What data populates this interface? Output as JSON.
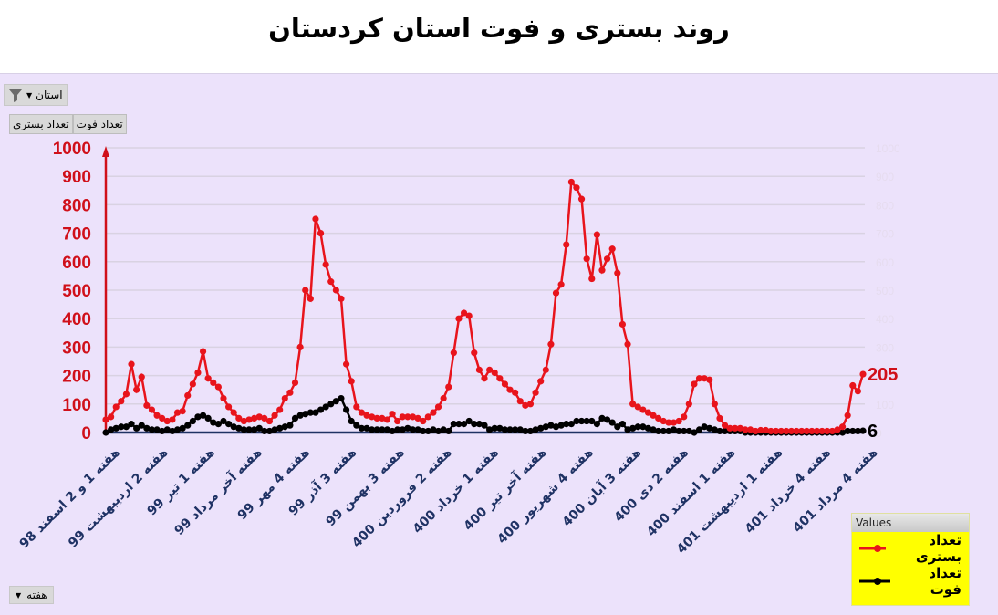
{
  "title": "روند بستری و فوت استان کردستان",
  "controls": {
    "province_filter_label": "استان",
    "series_buttons": [
      "تعداد فوت",
      "تعداد بستری"
    ],
    "week_filter_label": "هفته"
  },
  "legend": {
    "header": "Values",
    "items": [
      {
        "label": "تعداد بستری",
        "color": "#e8141c"
      },
      {
        "label": "تعداد فوت",
        "color": "#000000"
      }
    ]
  },
  "colors": {
    "background_panel": "#ece2fb",
    "hospitalized": "#e8141c",
    "deaths": "#000000",
    "x_label": "#1f3264",
    "left_axis": "#d0101a",
    "right_axis": "#e6dcef"
  },
  "chart_data": {
    "type": "line",
    "title": "روند بستری و فوت استان کردستان",
    "xlabel": "",
    "ylabel": "",
    "ylim": [
      0,
      1000
    ],
    "yticks": [
      0,
      100,
      200,
      300,
      400,
      500,
      600,
      700,
      800,
      900,
      1000
    ],
    "right_yticks": [
      0,
      100,
      200,
      300,
      400,
      500,
      600,
      700,
      800,
      900,
      1000
    ],
    "grid": true,
    "legend_position": "bottom-right",
    "categories": [
      "هفته 1 و 2 اسفند 98",
      "هفته 2 اردیبهشت 99",
      "هفته 1 تیر 99",
      "هفته آخر مرداد 99",
      "هفته 4 مهر 99",
      "هفته 3 آذر 99",
      "هفته 3 بهمن 99",
      "هفته 2 فروردین 400",
      "هفته 1 خرداد 400",
      "هفته آخر تیر 400",
      "هفته 4 شهریور 400",
      "هفته 3 آبان 400",
      "هفته 2 دی 400",
      "هفته 1 اسفند 400",
      "هفته 1 اردیبهشت 401",
      "هفته 4 خرداد 401",
      "هفته 4 مرداد 401"
    ],
    "series": [
      {
        "name": "تعداد بستری",
        "last_value_label": "205",
        "values": [
          45,
          55,
          90,
          110,
          135,
          240,
          150,
          195,
          95,
          80,
          60,
          50,
          40,
          45,
          70,
          75,
          130,
          170,
          210,
          285,
          190,
          175,
          160,
          120,
          90,
          70,
          50,
          40,
          45,
          50,
          55,
          50,
          40,
          60,
          80,
          120,
          140,
          175,
          300,
          500,
          470,
          750,
          700,
          590,
          530,
          500,
          470,
          240,
          180,
          90,
          70,
          60,
          55,
          50,
          50,
          45,
          65,
          40,
          55,
          55,
          55,
          50,
          40,
          55,
          70,
          90,
          120,
          160,
          280,
          400,
          420,
          410,
          280,
          220,
          190,
          220,
          210,
          190,
          170,
          150,
          140,
          110,
          95,
          100,
          140,
          180,
          220,
          310,
          490,
          520,
          660,
          880,
          860,
          820,
          610,
          540,
          695,
          570,
          610,
          645,
          560,
          380,
          310,
          100,
          90,
          80,
          70,
          60,
          50,
          40,
          35,
          35,
          40,
          55,
          100,
          170,
          190,
          190,
          185,
          100,
          50,
          25,
          15,
          15,
          15,
          10,
          10,
          5,
          8,
          8,
          5,
          5,
          5,
          5,
          5,
          5,
          5,
          5,
          5,
          5,
          5,
          5,
          5,
          10,
          20,
          60,
          165,
          145,
          205
        ]
      },
      {
        "name": "تعداد فوت",
        "last_value_label": "6",
        "values": [
          0,
          10,
          15,
          20,
          20,
          30,
          15,
          25,
          15,
          10,
          10,
          5,
          10,
          5,
          10,
          15,
          25,
          40,
          55,
          60,
          50,
          35,
          30,
          40,
          30,
          20,
          15,
          10,
          10,
          10,
          15,
          5,
          5,
          10,
          15,
          20,
          25,
          50,
          60,
          65,
          70,
          70,
          80,
          90,
          100,
          110,
          120,
          80,
          40,
          25,
          15,
          15,
          10,
          10,
          10,
          10,
          5,
          10,
          10,
          15,
          10,
          10,
          5,
          5,
          10,
          5,
          10,
          5,
          30,
          30,
          30,
          40,
          30,
          30,
          25,
          10,
          15,
          15,
          10,
          10,
          10,
          10,
          5,
          5,
          10,
          15,
          20,
          25,
          20,
          25,
          30,
          30,
          40,
          40,
          40,
          40,
          30,
          50,
          45,
          35,
          20,
          30,
          10,
          15,
          20,
          20,
          15,
          10,
          5,
          5,
          5,
          10,
          5,
          5,
          5,
          0,
          10,
          20,
          15,
          10,
          5,
          5,
          5,
          5,
          5,
          0,
          0,
          0,
          0,
          0,
          0,
          0,
          0,
          0,
          0,
          0,
          0,
          0,
          0,
          0,
          0,
          0,
          0,
          0,
          0,
          5,
          5,
          5,
          6
        ]
      }
    ]
  }
}
